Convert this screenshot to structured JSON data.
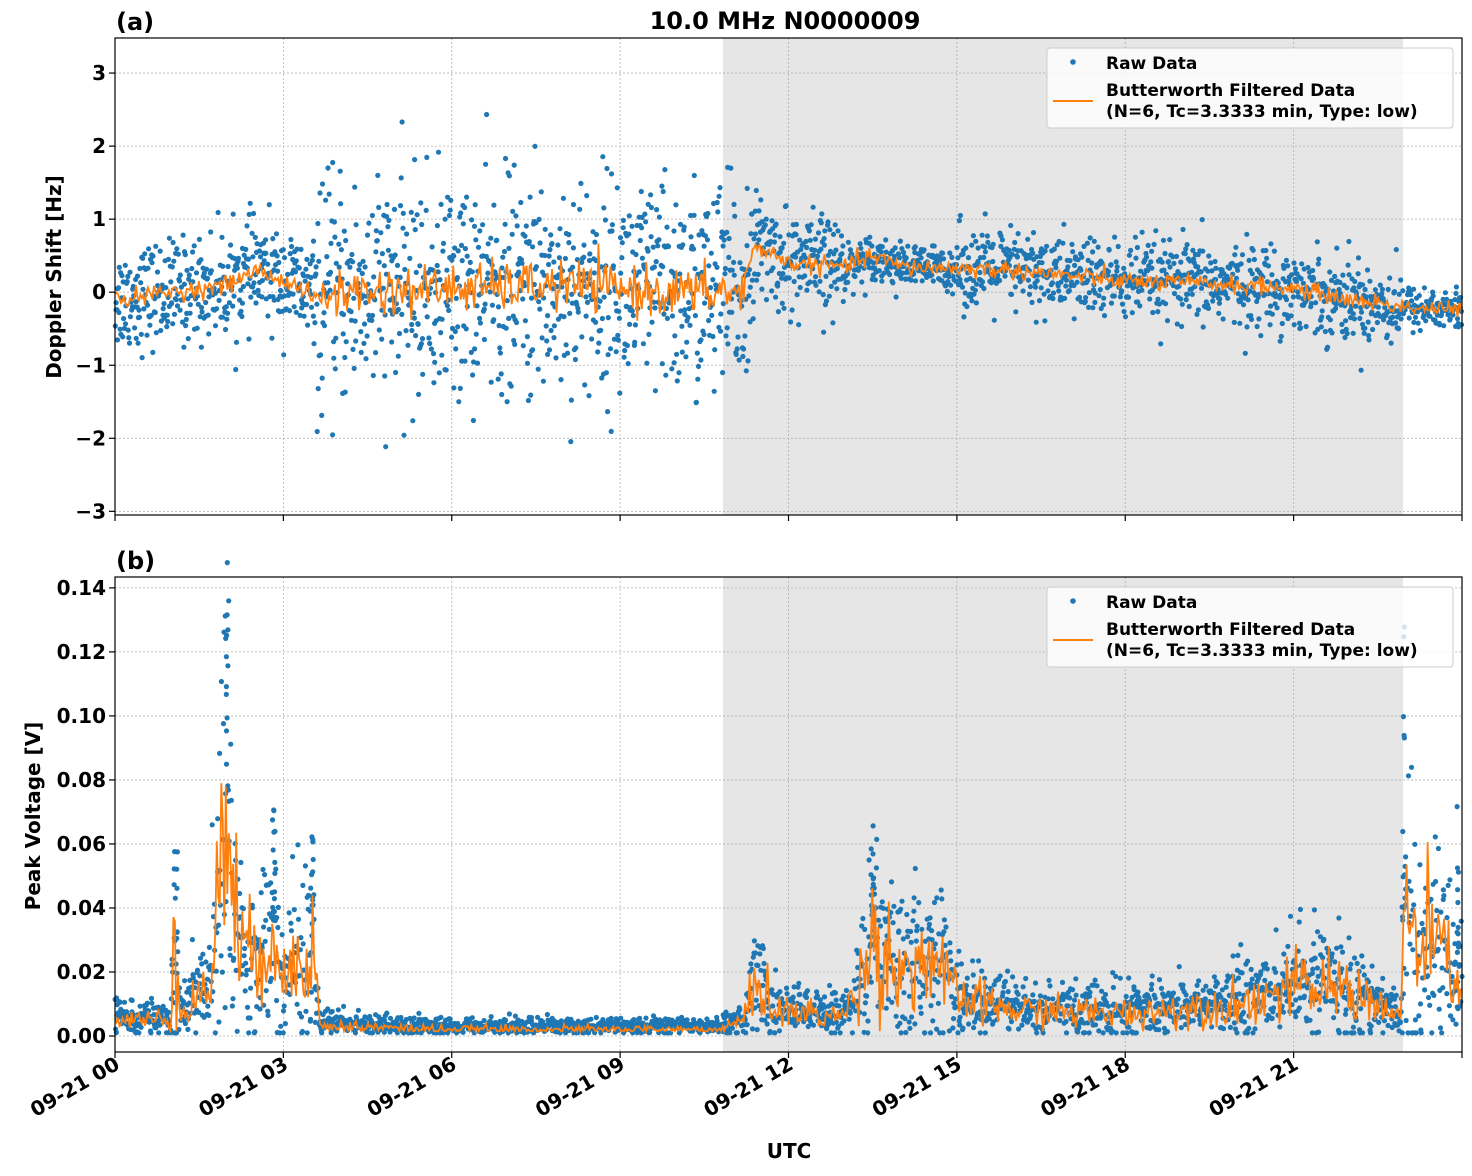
{
  "title": "10.0 MHz N0000009",
  "xlabel": "UTC",
  "x_ticks": [
    "09-21 00",
    "09-21 03",
    "09-21 06",
    "09-21 09",
    "09-21 12",
    "09-21 15",
    "09-21 18",
    "09-21 21"
  ],
  "legend": {
    "raw": "Raw Data",
    "filtered_line1": "Butterworth Filtered Data",
    "filtered_line2": "(N=6, Tc=3.3333 min, Type: low)"
  },
  "colors": {
    "raw": "#1f77b4",
    "filtered": "#ff7f0e",
    "shade": "#e6e6e6"
  },
  "chart_data": [
    {
      "type": "scatter",
      "panel_label": "(a)",
      "ylabel": "Doppler Shift [Hz]",
      "xlim": [
        "09-21 00:00",
        "09-22 00:00"
      ],
      "ylim": [
        -3.05,
        3.48
      ],
      "y_ticks": [
        3,
        2,
        1,
        0,
        -1,
        -2,
        -3
      ],
      "y_tick_labels": [
        "3",
        "2",
        "1",
        "0",
        "−1",
        "−2",
        "−3"
      ],
      "grid": true,
      "legend_position": "top-right",
      "shaded_interval": [
        "09-21 10:50",
        "09-21 22:57"
      ],
      "filtered_series": [
        [
          "00:00",
          -0.1
        ],
        [
          "01:00",
          0.0
        ],
        [
          "02:00",
          0.1
        ],
        [
          "02:30",
          0.3
        ],
        [
          "03:12",
          0.1
        ],
        [
          "03:36",
          -0.1
        ],
        [
          "04:00",
          0.0
        ],
        [
          "06:00",
          0.05
        ],
        [
          "08:00",
          0.1
        ],
        [
          "10:00",
          0.0
        ],
        [
          "11:12",
          0.0
        ],
        [
          "11:24",
          0.65
        ],
        [
          "12:00",
          0.4
        ],
        [
          "13:00",
          0.35
        ],
        [
          "13:30",
          0.5
        ],
        [
          "14:00",
          0.35
        ],
        [
          "16:00",
          0.3
        ],
        [
          "18:00",
          0.15
        ],
        [
          "20:00",
          0.1
        ],
        [
          "21:00",
          0.05
        ],
        [
          "22:00",
          -0.1
        ],
        [
          "23:00",
          -0.2
        ],
        [
          "24:00",
          -0.25
        ]
      ],
      "raw_spread_std": [
        [
          "00:00",
          "03:36",
          0.35
        ],
        [
          "03:36",
          "11:18",
          0.75
        ],
        [
          "11:18",
          "13:00",
          0.35
        ],
        [
          "13:00",
          "15:00",
          0.15
        ],
        [
          "15:00",
          "22:54",
          0.28
        ],
        [
          "22:54",
          "24:00",
          0.15
        ]
      ]
    },
    {
      "type": "scatter",
      "panel_label": "(b)",
      "ylabel": "Peak Voltage [V]",
      "xlim": [
        "09-21 00:00",
        "09-22 00:00"
      ],
      "ylim": [
        -0.005,
        0.1434
      ],
      "y_ticks": [
        0.14,
        0.12,
        0.1,
        0.08,
        0.06,
        0.04,
        0.02,
        0.0
      ],
      "y_tick_labels": [
        "0.14",
        "0.12",
        "0.10",
        "0.08",
        "0.06",
        "0.04",
        "0.02",
        "0.00"
      ],
      "grid": true,
      "legend_position": "top-right",
      "shaded_interval": [
        "09-21 10:50",
        "09-21 22:57"
      ],
      "filtered_series": [
        [
          "00:00",
          0.005
        ],
        [
          "01:00",
          0.005
        ],
        [
          "01:03",
          0.04
        ],
        [
          "01:09",
          0.008
        ],
        [
          "01:42",
          0.015
        ],
        [
          "02:00",
          0.075
        ],
        [
          "02:12",
          0.03
        ],
        [
          "02:30",
          0.02
        ],
        [
          "02:48",
          0.04
        ],
        [
          "03:00",
          0.015
        ],
        [
          "03:30",
          0.035
        ],
        [
          "03:39",
          0.003
        ],
        [
          "04:00",
          0.003
        ],
        [
          "06:00",
          0.002
        ],
        [
          "10:48",
          0.002
        ],
        [
          "11:12",
          0.005
        ],
        [
          "11:30",
          0.02
        ],
        [
          "11:42",
          0.008
        ],
        [
          "13:00",
          0.006
        ],
        [
          "13:12",
          0.015
        ],
        [
          "13:30",
          0.03
        ],
        [
          "14:00",
          0.02
        ],
        [
          "14:30",
          0.025
        ],
        [
          "15:00",
          0.012
        ],
        [
          "16:00",
          0.008
        ],
        [
          "18:00",
          0.007
        ],
        [
          "20:00",
          0.01
        ],
        [
          "21:00",
          0.015
        ],
        [
          "22:00",
          0.015
        ],
        [
          "22:30",
          0.01
        ],
        [
          "22:54",
          0.005
        ],
        [
          "23:00",
          0.045
        ],
        [
          "23:12",
          0.025
        ],
        [
          "23:30",
          0.03
        ],
        [
          "24:00",
          0.015
        ]
      ],
      "raw_peaks": [
        [
          "02:00",
          0.136
        ],
        [
          "22:58",
          0.13
        ],
        [
          "13:30",
          0.075
        ],
        [
          "01:05",
          0.06
        ],
        [
          "02:50",
          0.073
        ],
        [
          "03:30",
          0.068
        ],
        [
          "23:55",
          0.088
        ]
      ]
    }
  ]
}
